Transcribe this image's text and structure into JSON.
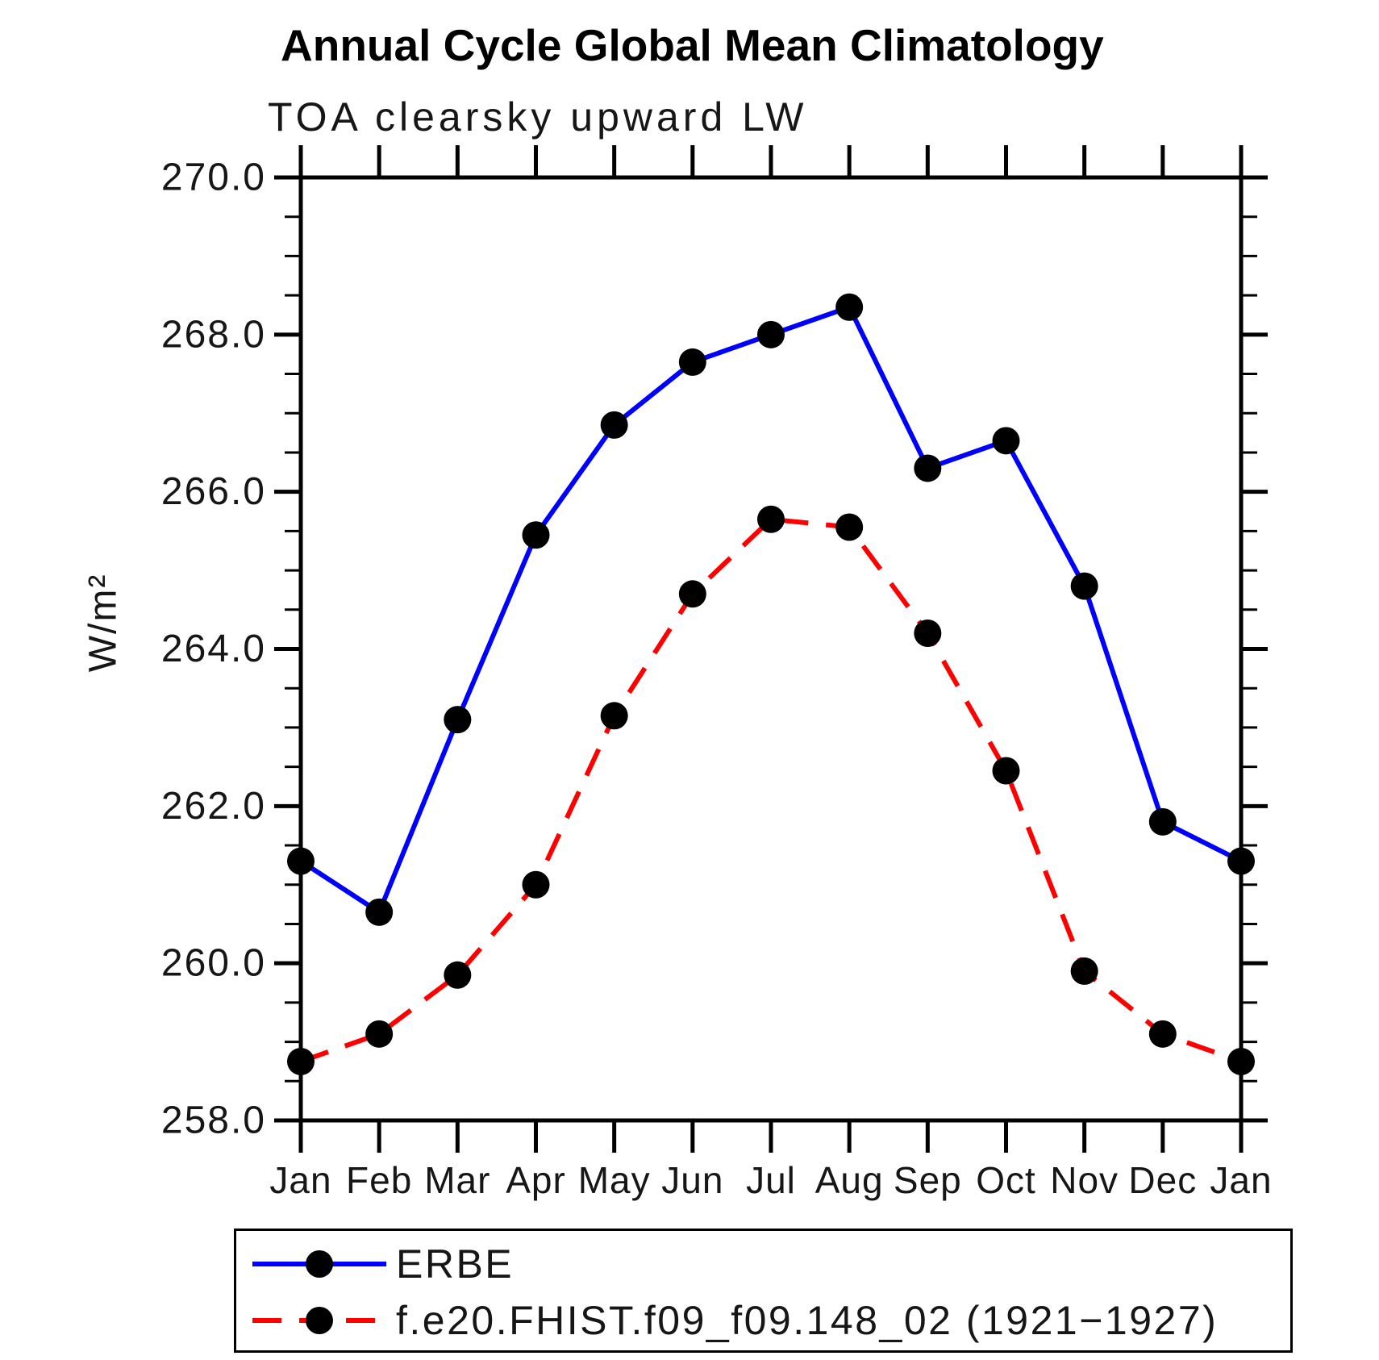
{
  "title": "Annual Cycle Global Mean Climatology",
  "subtitle": "TOA clearsky upward LW",
  "colors": {
    "axis": "#000000",
    "background": "#ffffff",
    "erbe_line": "#0000ff",
    "model_line": "#ff0000",
    "marker": "#000000"
  },
  "chart_data": {
    "type": "line",
    "title": "Annual Cycle Global Mean Climatology",
    "subtitle": "TOA clearsky upward LW",
    "xlabel": "",
    "ylabel": "W/m²",
    "ylim": [
      258.0,
      270.0
    ],
    "ytick_major": [
      258,
      260,
      262,
      264,
      266,
      268,
      270
    ],
    "ytick_labels": [
      "258.0",
      "260.0",
      "262.0",
      "264.0",
      "266.0",
      "268.0",
      "270.0"
    ],
    "ytick_minor_step": 0.5,
    "grid": false,
    "legend_position": "bottom",
    "categories": [
      "Jan",
      "Feb",
      "Mar",
      "Apr",
      "May",
      "Jun",
      "Jul",
      "Aug",
      "Sep",
      "Oct",
      "Nov",
      "Dec",
      "Jan"
    ],
    "series": [
      {
        "name": "ERBE",
        "color": "#0000ff",
        "line_style": "solid",
        "marker": "circle",
        "marker_color": "#000000",
        "values": [
          261.3,
          260.65,
          263.1,
          265.45,
          266.85,
          267.65,
          268.0,
          268.35,
          266.3,
          266.65,
          264.8,
          261.8,
          261.3
        ]
      },
      {
        "name": "f.e20.FHIST.f09_f09.148_02 (1921−1927)",
        "color": "#ff0000",
        "line_style": "dashed",
        "marker": "circle",
        "marker_color": "#000000",
        "values": [
          258.75,
          259.1,
          259.85,
          261.0,
          263.15,
          264.7,
          265.65,
          265.55,
          264.2,
          262.45,
          259.9,
          259.1,
          258.75
        ]
      }
    ]
  }
}
